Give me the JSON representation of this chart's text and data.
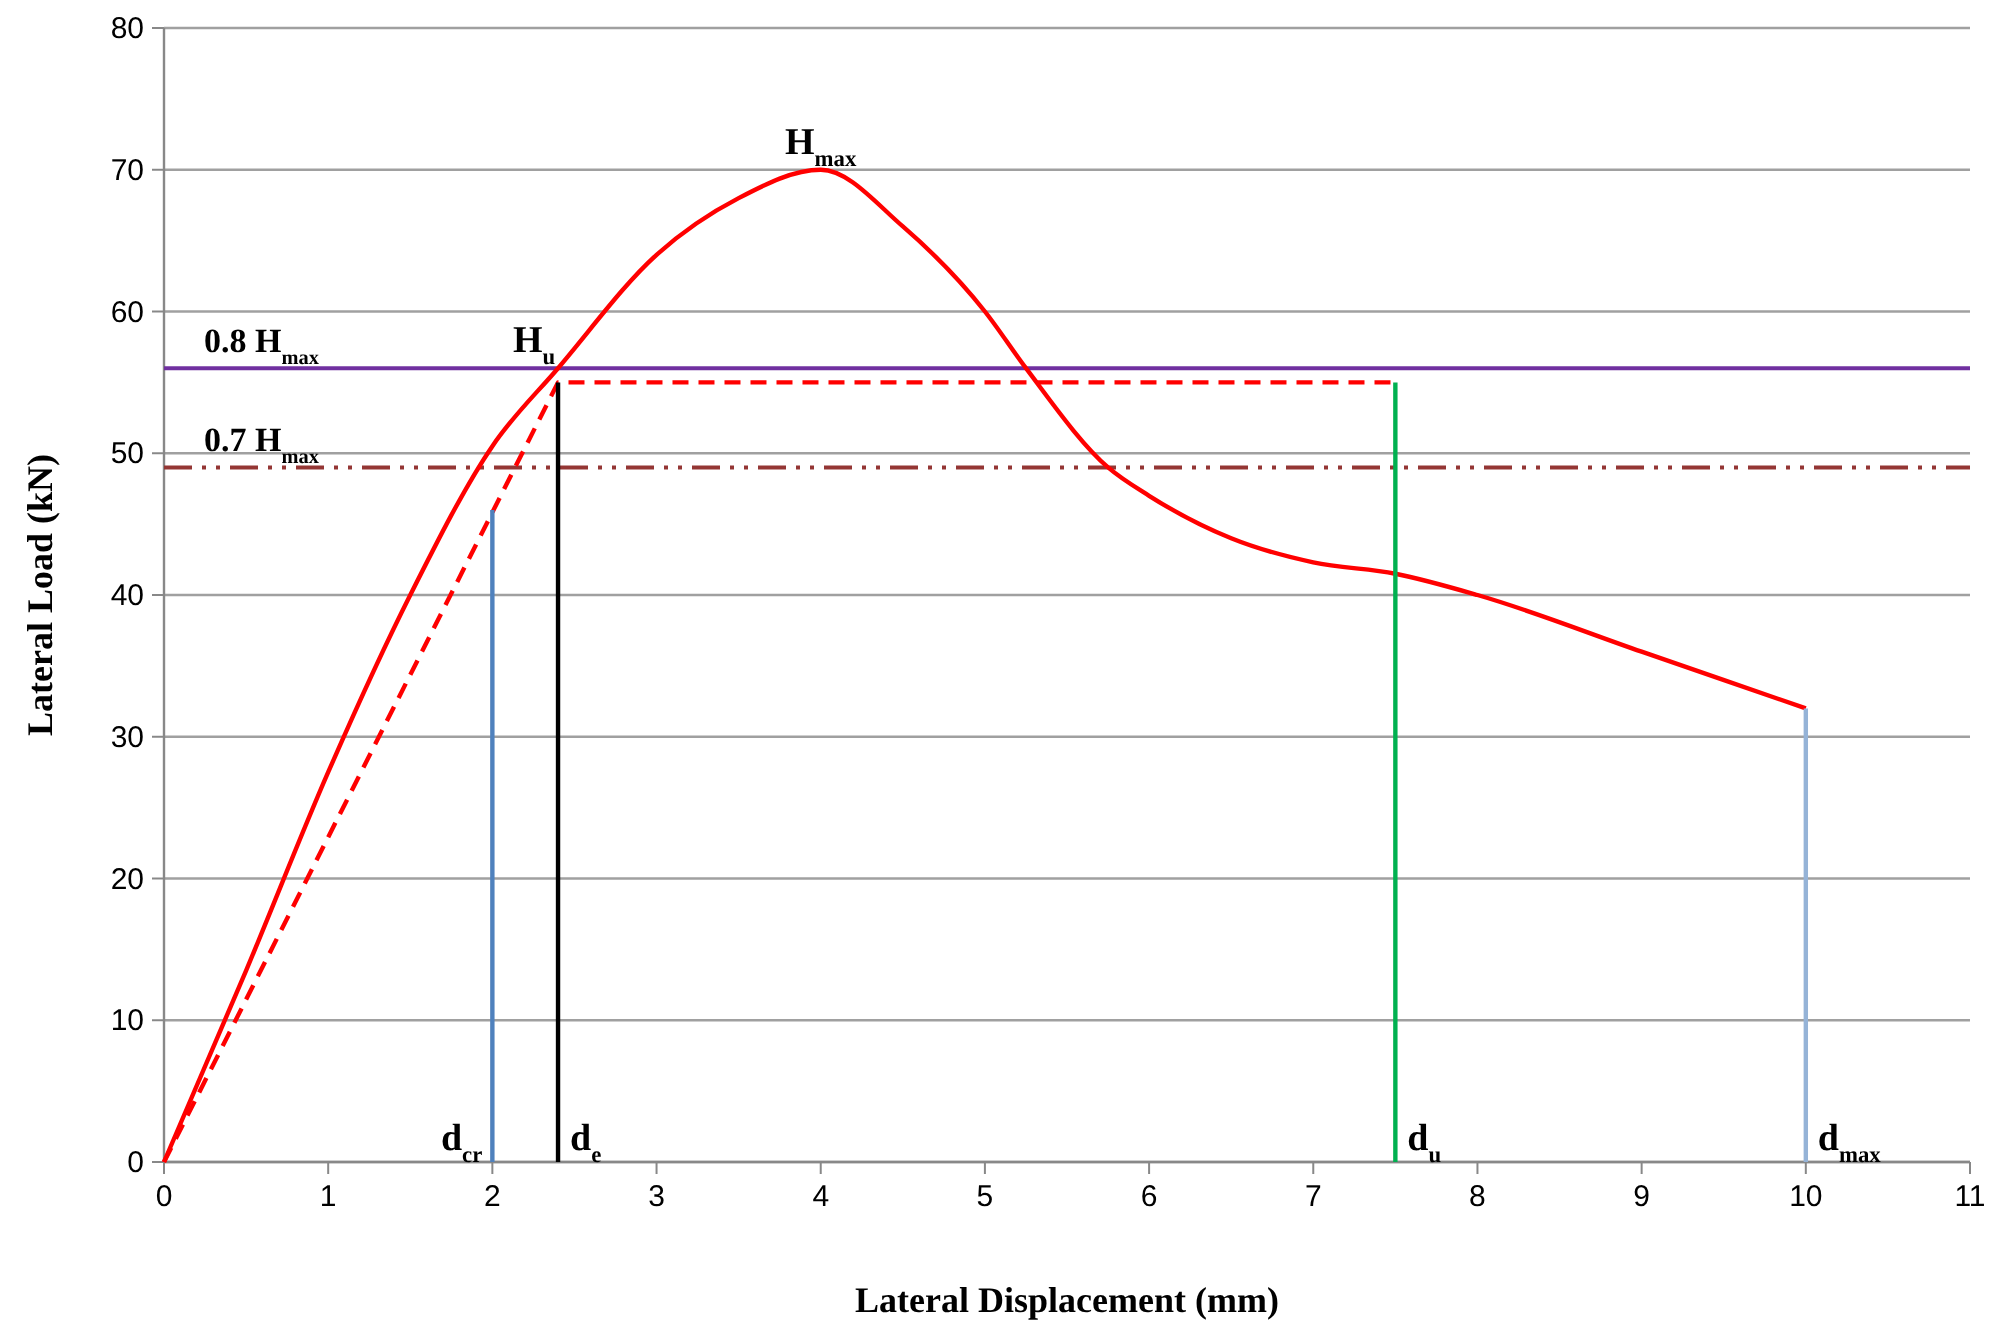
{
  "chart_data": {
    "type": "line",
    "xlabel": "Lateral Displacement (mm)",
    "ylabel": "Lateral Load (kN)",
    "xlim": [
      0,
      11
    ],
    "xticks": [
      0,
      1,
      2,
      3,
      4,
      5,
      6,
      7,
      8,
      9,
      10,
      11
    ],
    "ylim": [
      0,
      80
    ],
    "yticks": [
      0,
      10,
      20,
      30,
      40,
      50,
      60,
      70,
      80
    ],
    "grid": "y",
    "marker": "none",
    "series": [
      {
        "color": "#ff0000",
        "line_style": "solid",
        "x": [
          0,
          0.5,
          1,
          1.5,
          2,
          2.4,
          3,
          3.5,
          4,
          4.5,
          5,
          5.25,
          5.75,
          6,
          6.5,
          7,
          7.5,
          8,
          9,
          10
        ],
        "values": [
          0,
          13.5,
          27.5,
          40,
          50.5,
          56,
          64,
          68,
          70,
          66,
          60,
          56,
          49,
          47,
          44,
          42.3,
          41.5,
          40,
          36,
          32
        ]
      },
      {
        "color": "#ff0000",
        "line_style": "dashed",
        "x": [
          0,
          2.4,
          7.5
        ],
        "values": [
          0,
          55,
          55
        ]
      },
      {
        "color": "#4f81bd",
        "line_style": "solid",
        "x": [
          2,
          2
        ],
        "values": [
          0,
          46
        ]
      },
      {
        "color": "#000000",
        "line_style": "solid",
        "x": [
          2.4,
          2.4
        ],
        "values": [
          0,
          55
        ]
      },
      {
        "color": "#00b050",
        "line_style": "solid",
        "x": [
          7.5,
          7.5
        ],
        "values": [
          0,
          55
        ]
      },
      {
        "color": "#95b3d7",
        "line_style": "solid",
        "x": [
          10,
          10
        ],
        "values": [
          0,
          32
        ]
      }
    ],
    "ref_lines": [
      {
        "axis": "y",
        "value": 56,
        "label": "0.8 H$_{max}$",
        "color": "#7030a0",
        "line_style": "solid"
      },
      {
        "axis": "y",
        "value": 49,
        "label": "0.7 H$_{max}$",
        "color": "#943634",
        "line_style": "dashdotdot"
      }
    ],
    "annotations": [
      {
        "text": "H$_{max}$",
        "x": 4,
        "y": 70
      },
      {
        "text": "H$_{u}$",
        "x": 2.4,
        "y": 56
      },
      {
        "text": "d$_{cr}$",
        "x": 2,
        "y": 0
      },
      {
        "text": "d$_{e}$",
        "x": 2.4,
        "y": 0
      },
      {
        "text": "d$_{u}$",
        "x": 7.5,
        "y": 0
      },
      {
        "text": "d$_{max}$",
        "x": 10,
        "y": 0
      }
    ]
  }
}
